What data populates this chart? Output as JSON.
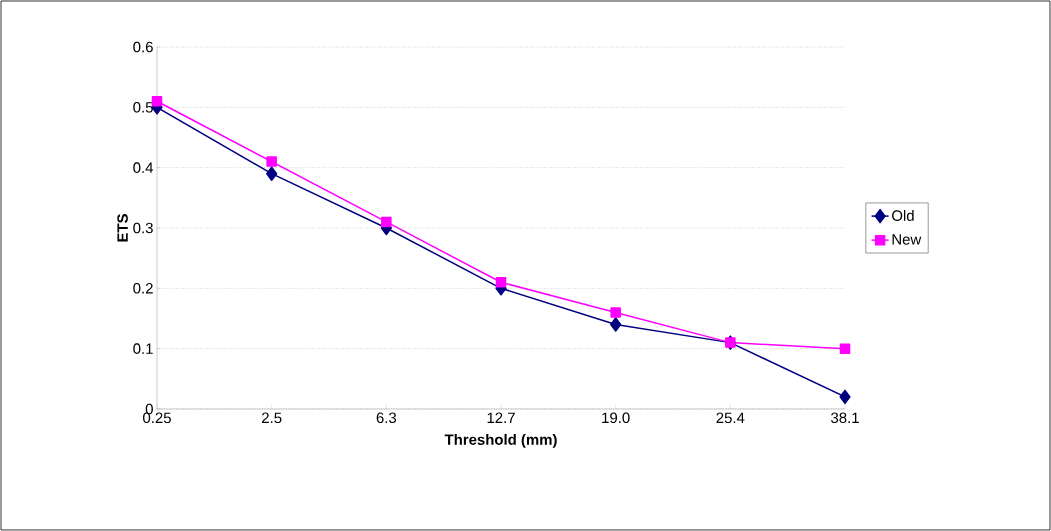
{
  "chart_data": {
    "type": "line",
    "xlabel": "Threshold (mm)",
    "ylabel": "ETS",
    "categories": [
      "0.25",
      "2.5",
      "6.3",
      "12.7",
      "19.0",
      "25.4",
      "38.1"
    ],
    "series": [
      {
        "name": "Old",
        "color": "#000080",
        "marker": "diamond",
        "values": [
          0.5,
          0.39,
          0.3,
          0.2,
          0.14,
          0.11,
          0.02
        ]
      },
      {
        "name": "New",
        "color": "#ff00ff",
        "marker": "square",
        "values": [
          0.51,
          0.41,
          0.31,
          0.21,
          0.16,
          0.11,
          0.1
        ]
      }
    ],
    "ylim": [
      0,
      0.6
    ],
    "yticks": [
      0,
      0.1,
      0.2,
      0.3,
      0.4,
      0.5,
      0.6
    ],
    "grid": "y",
    "legend": "right",
    "line_style": "solid"
  }
}
